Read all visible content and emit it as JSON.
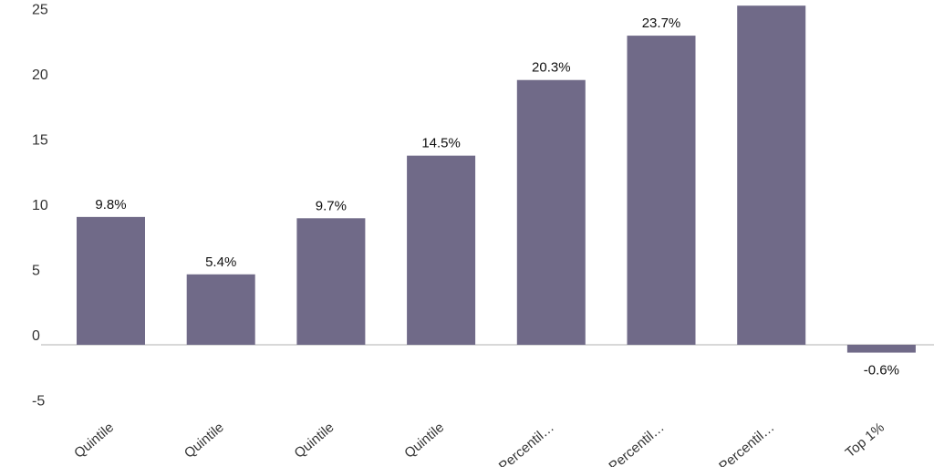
{
  "chart_data": {
    "type": "bar",
    "categories": [
      "Quintile",
      "Quintile",
      "Quintile",
      "Quintile",
      "Percentil…",
      "Percentil…",
      "Percentil…",
      "Top 1%"
    ],
    "values": [
      9.8,
      5.4,
      9.7,
      14.5,
      20.3,
      23.7,
      26.0,
      -0.6
    ],
    "data_labels": [
      "9.8%",
      "5.4%",
      "9.7%",
      "14.5%",
      "20.3%",
      "23.7%",
      "",
      "-0.6%"
    ],
    "yticks": [
      25,
      20,
      15,
      10,
      5,
      0,
      -5
    ],
    "ylim": [
      -5,
      26
    ],
    "grid": false,
    "bar_color": "#706a88",
    "axis_color": "#cccccc"
  }
}
